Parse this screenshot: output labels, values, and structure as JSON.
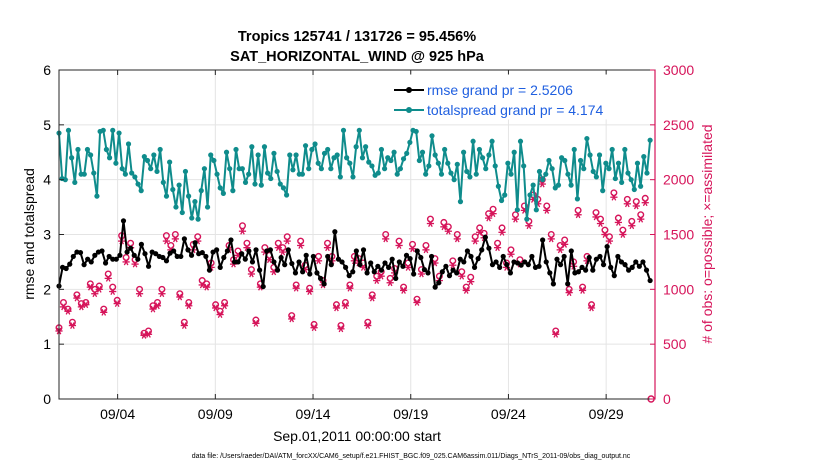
{
  "chart_data": {
    "type": "line",
    "title": "Tropics 125741 / 131726 = 95.456%",
    "subtitle": "SAT_HORIZONTAL_WIND @ 925 hPa",
    "xlabel": "Sep.01,2011 00:00:00 start",
    "ylabel_left": "rmse and totalspread",
    "ylabel_right": "# of obs: o=possible; ×=assimilated",
    "footer": "data file: /Users/raeder/DAI/ATM_forcXX/CAM6_setup/f.e21.FHIST_BGC.f09_025.CAM6assim.011/Diags_NTrS_2011-09/obs_diag_output.nc",
    "x_range": [
      1,
      31.5
    ],
    "ylim_left": [
      0,
      6
    ],
    "ylim_right": [
      0,
      3000
    ],
    "x_ticks": [
      4,
      9,
      14,
      19,
      24,
      29
    ],
    "x_tick_labels": [
      "09/04",
      "09/09",
      "09/14",
      "09/19",
      "09/24",
      "09/29"
    ],
    "y_ticks_left": [
      0,
      1,
      2,
      3,
      4,
      5,
      6
    ],
    "y_tick_labels_left": [
      "0",
      "1",
      "2",
      "3",
      "4",
      "5",
      "6"
    ],
    "y_ticks_right": [
      0,
      500,
      1000,
      1500,
      2000,
      2500,
      3000
    ],
    "y_tick_labels_right": [
      "0",
      "500",
      "1000",
      "1500",
      "2000",
      "2500",
      "3000"
    ],
    "grid": true,
    "legend_position": "top-right",
    "series": [
      {
        "name": "rmse grand pr = 2.5206",
        "axis": "left",
        "color": "#000000",
        "marker": "filled-circle",
        "values": [
          2.06,
          2.4,
          2.38,
          2.46,
          2.6,
          2.68,
          2.67,
          2.45,
          2.55,
          2.5,
          2.62,
          2.68,
          2.7,
          2.48,
          2.6,
          2.55,
          2.55,
          2.62,
          3.25,
          2.68,
          2.75,
          2.62,
          2.55,
          2.82,
          2.65,
          2.42,
          2.68,
          2.65,
          2.6,
          2.58,
          2.52,
          2.66,
          2.7,
          2.6,
          2.6,
          2.92,
          2.72,
          2.62,
          2.85,
          2.65,
          2.67,
          2.6,
          2.35,
          2.68,
          2.72,
          2.4,
          2.58,
          2.7,
          2.9,
          2.5,
          2.5,
          2.65,
          2.55,
          2.7,
          2.5,
          2.72,
          2.35,
          2.05,
          2.7,
          2.72,
          2.5,
          2.35,
          2.58,
          2.45,
          2.72,
          2.47,
          2.3,
          2.5,
          2.32,
          2.62,
          2.28,
          2.6,
          2.3,
          2.2,
          2.1,
          2.6,
          2.45,
          3.05,
          2.55,
          2.5,
          2.4,
          2.25,
          2.32,
          2.7,
          2.45,
          2.72,
          2.3,
          2.48,
          2.32,
          2.42,
          2.35,
          2.48,
          2.4,
          2.55,
          2.2,
          2.5,
          2.42,
          2.62,
          2.56,
          2.28,
          2.7,
          2.58,
          2.36,
          2.3,
          2.6,
          2.04,
          2.12,
          2.32,
          2.42,
          2.25,
          2.35,
          2.3,
          2.55,
          2.5,
          2.7,
          2.6,
          2.4,
          2.56,
          2.72,
          2.95,
          2.75,
          2.45,
          2.5,
          2.4,
          2.6,
          2.45,
          2.3,
          2.5,
          2.48,
          2.44,
          2.5,
          2.45,
          2.6,
          2.4,
          2.42,
          2.9,
          2.5,
          2.3,
          2.1,
          2.55,
          2.45,
          2.6,
          2.1,
          2.7,
          2.3,
          2.32,
          2.4,
          2.35,
          2.58,
          2.35,
          2.55,
          2.6,
          2.45,
          2.78,
          2.4,
          2.25,
          2.6,
          2.5,
          2.45,
          2.35,
          2.4,
          2.5,
          2.42,
          2.5,
          2.35,
          2.16
        ]
      },
      {
        "name": "totalspread grand pr = 4.174",
        "axis": "left",
        "color": "#0f8c8c",
        "marker": "filled-circle",
        "values": [
          4.85,
          4.02,
          4.0,
          4.9,
          4.4,
          3.95,
          4.55,
          4.1,
          4.1,
          4.55,
          4.45,
          4.12,
          3.7,
          4.88,
          4.9,
          4.55,
          4.4,
          4.9,
          4.3,
          4.85,
          4.2,
          4.1,
          4.65,
          4.12,
          4.05,
          3.92,
          3.8,
          4.42,
          4.35,
          4.2,
          4.45,
          4.15,
          4.55,
          3.95,
          3.7,
          4.32,
          3.82,
          3.5,
          3.9,
          3.4,
          4.15,
          3.7,
          3.3,
          3.6,
          3.28,
          3.8,
          4.2,
          3.5,
          4.45,
          4.35,
          4.1,
          3.85,
          3.75,
          4.5,
          4.2,
          3.8,
          4.55,
          4.2,
          4.2,
          3.95,
          4.1,
          4.6,
          3.92,
          4.45,
          3.9,
          4.6,
          4.12,
          4.02,
          4.48,
          4.15,
          3.92,
          3.85,
          3.72,
          4.45,
          4.18,
          4.45,
          4.1,
          4.1,
          4.62,
          4.2,
          4.55,
          4.65,
          4.3,
          4.2,
          4.48,
          4.55,
          4.2,
          4.4,
          4.45,
          4.05,
          4.9,
          4.4,
          4.3,
          4.05,
          4.6,
          4.9,
          4.4,
          4.6,
          4.32,
          4.25,
          4.08,
          4.12,
          4.55,
          4.2,
          4.4,
          4.35,
          4.5,
          4.1,
          4.2,
          4.38,
          4.48,
          4.68,
          4.9,
          4.88,
          4.35,
          4.5,
          4.1,
          4.25,
          4.8,
          4.45,
          4.3,
          4.1,
          4.55,
          4.3,
          4.12,
          4.0,
          4.28,
          3.6,
          4.5,
          4.15,
          4.05,
          4.7,
          4.1,
          4.55,
          4.4,
          4.2,
          4.45,
          4.7,
          4.25,
          3.88,
          3.62,
          3.72,
          4.3,
          4.1,
          4.5,
          3.45,
          4.7,
          4.25,
          3.28,
          3.72,
          3.9,
          3.45,
          4.15,
          4.0,
          4.1,
          4.35,
          4.2,
          3.85,
          3.9,
          4.4,
          4.35,
          4.1,
          3.9,
          4.55,
          3.65,
          4.35,
          4.2,
          4.75,
          4.45,
          4.15,
          4.05,
          4.45,
          3.8,
          4.3,
          4.2,
          4.55,
          4.02,
          4.3,
          3.95,
          4.55,
          4.12,
          4.0,
          3.82,
          4.3,
          3.88,
          4.42,
          4.12,
          4.72
        ]
      },
      {
        "name": "obs possible",
        "axis": "right",
        "color": "#d6145a",
        "marker": "open-circle",
        "values": [
          650,
          880,
          820,
          700,
          950,
          870,
          880,
          1050,
          1000,
          1030,
          820,
          1140,
          1020,
          900,
          1490,
          1290,
          1420,
          1270,
          1000,
          600,
          620,
          850,
          880,
          1000,
          1490,
          1400,
          1500,
          960,
          700,
          880,
          1410,
          1480,
          1080,
          1050,
          1240,
          860,
          800,
          880,
          1400,
          1270,
          1350,
          1580,
          1420,
          1180,
          720,
          1050,
          1380,
          1310,
          1200,
          1420,
          1380,
          1480,
          760,
          1040,
          1440,
          1220,
          1010,
          680,
          1300,
          1080,
          1420,
          1300,
          860,
          670,
          880,
          1040,
          1300,
          1280,
          1240,
          700,
          950,
          1120,
          1160,
          1500,
          1100,
          1190,
          1440,
          1020,
          1240,
          1410,
          910,
          1180,
          1400,
          1640,
          1280,
          1120,
          1610,
          1570,
          1260,
          1500,
          1160,
          1020,
          1110,
          1480,
          1560,
          1510,
          1690,
          1730,
          1420,
          1560,
          1240,
          1360,
          1680,
          1270,
          1760,
          1620,
          1860,
          1820,
          2000,
          1760,
          1500,
          620,
          1400,
          1450,
          1000,
          1250,
          1720,
          1020,
          1300,
          860,
          1700,
          1640,
          1540,
          1480,
          1880,
          1650,
          1540,
          1820,
          1620,
          1800,
          1680,
          1830
        ]
      },
      {
        "name": "obs assimilated",
        "axis": "right",
        "color": "#d6145a",
        "marker": "asterisk",
        "values": [
          620,
          840,
          800,
          670,
          920,
          840,
          860,
          1020,
          960,
          1000,
          790,
          1100,
          980,
          870,
          1440,
          1250,
          1380,
          1230,
          960,
          580,
          590,
          820,
          850,
          960,
          1440,
          1360,
          1460,
          930,
          670,
          850,
          1360,
          1440,
          1040,
          1020,
          1200,
          830,
          770,
          850,
          1360,
          1230,
          1310,
          1530,
          1380,
          1140,
          690,
          1020,
          1340,
          1270,
          1160,
          1380,
          1340,
          1440,
          730,
          1010,
          1400,
          1180,
          980,
          650,
          1260,
          1040,
          1380,
          1260,
          830,
          640,
          850,
          1010,
          1260,
          1240,
          1200,
          670,
          920,
          1080,
          1120,
          1460,
          1060,
          1150,
          1400,
          990,
          1200,
          1370,
          880,
          1140,
          1360,
          1600,
          1240,
          1080,
          1570,
          1530,
          1220,
          1460,
          1120,
          990,
          1070,
          1440,
          1520,
          1470,
          1650,
          1690,
          1380,
          1520,
          1200,
          1320,
          1640,
          1230,
          1720,
          1580,
          1820,
          1780,
          1960,
          1720,
          1460,
          590,
          1360,
          1410,
          970,
          1210,
          1680,
          990,
          1260,
          830,
          1660,
          1600,
          1500,
          1440,
          1840,
          1610,
          1500,
          1780,
          1580,
          1760,
          1640,
          1790
        ]
      }
    ],
    "final_point_right": 0
  }
}
